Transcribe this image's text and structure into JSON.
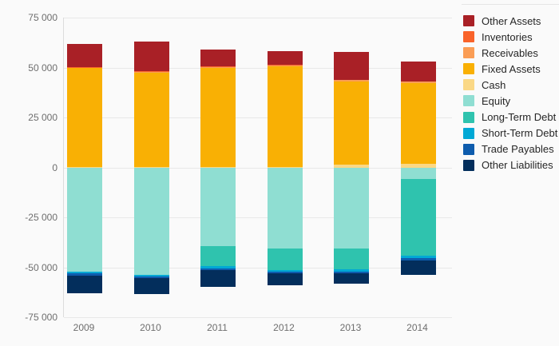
{
  "chart_data": {
    "type": "bar",
    "variant": "stacked-diverging",
    "title": "",
    "categories": [
      "2009",
      "2010",
      "2011",
      "2012",
      "2013",
      "2014"
    ],
    "series": [
      {
        "name": "Other Assets",
        "color": "#A92026",
        "values": [
          11800,
          14900,
          8600,
          7000,
          13700,
          9700
        ]
      },
      {
        "name": "Inventories",
        "color": "#F9632A",
        "values": [
          200,
          300,
          300,
          300,
          300,
          300
        ]
      },
      {
        "name": "Receivables",
        "color": "#FA9D55",
        "values": [
          300,
          500,
          600,
          500,
          500,
          500
        ]
      },
      {
        "name": "Fixed Assets",
        "color": "#F9B004",
        "values": [
          49500,
          47300,
          49500,
          50400,
          41900,
          40400
        ]
      },
      {
        "name": "Cash",
        "color": "#FAD886",
        "values": [
          200,
          200,
          200,
          200,
          1300,
          2000
        ]
      },
      {
        "name": "Equity",
        "color": "#8FDED2",
        "values": [
          -52000,
          -53700,
          -39300,
          -40600,
          -40700,
          -5600
        ]
      },
      {
        "name": "Long-Term Debt",
        "color": "#2FC3AE",
        "values": [
          0,
          0,
          -10200,
          -10600,
          -10400,
          -38500
        ]
      },
      {
        "name": "Short-Term Debt",
        "color": "#00A8D5",
        "values": [
          -800,
          -800,
          -1200,
          -1100,
          -1100,
          -1400
        ]
      },
      {
        "name": "Trade Payables",
        "color": "#0E5CAD",
        "values": [
          -1200,
          -800,
          -800,
          -700,
          -600,
          -1000
        ]
      },
      {
        "name": "Other Liabilities",
        "color": "#032E5C",
        "values": [
          -8800,
          -8000,
          -8200,
          -5900,
          -5500,
          -7100
        ]
      }
    ],
    "ylim": [
      -75000,
      75000
    ],
    "yticks": [
      {
        "value": 75000,
        "label": "75 000"
      },
      {
        "value": 50000,
        "label": "50 000"
      },
      {
        "value": 25000,
        "label": "25 000"
      },
      {
        "value": 0,
        "label": "0"
      },
      {
        "value": -25000,
        "label": "-25 000"
      },
      {
        "value": -50000,
        "label": "-50 000"
      },
      {
        "value": -75000,
        "label": "-75 000"
      }
    ],
    "xlabel": "",
    "ylabel": "",
    "grid": true,
    "legend_position": "right"
  },
  "colors": {
    "background": "#FAFAFA",
    "gridline": "#E8E8E8",
    "axis_line": "#DCDCDC",
    "tick_text": "#6E6E6E",
    "legend_text": "#262626"
  }
}
